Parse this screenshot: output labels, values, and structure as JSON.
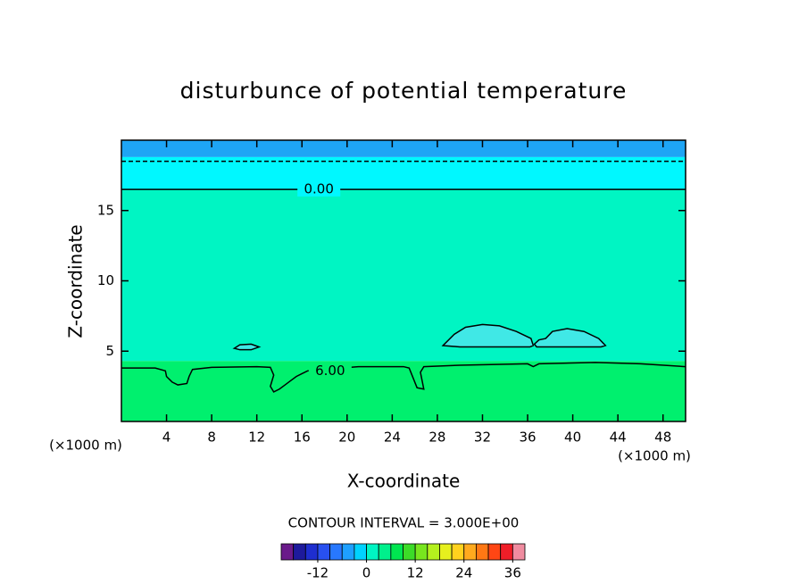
{
  "chart_data": {
    "type": "contour",
    "title": "disturbunce of potential temperature",
    "xlabel": "X-coordinate",
    "ylabel": "Z-coordinate",
    "x_unit": "(×1000 m)",
    "xlim": [
      0,
      50
    ],
    "ylim": [
      0,
      20
    ],
    "xticks": [
      4,
      8,
      12,
      16,
      20,
      24,
      28,
      32,
      36,
      40,
      44,
      48
    ],
    "yticks": [
      5,
      10,
      15
    ],
    "fill_bands": [
      {
        "zlim": [
          18.8,
          20
        ],
        "color": "#1ea5f5"
      },
      {
        "zlim": [
          16.5,
          18.8
        ],
        "color": "#00f8ff"
      },
      {
        "zlim": [
          4.3,
          16.5
        ],
        "color": "#00f5c3"
      },
      {
        "zlim": [
          0,
          4.3
        ],
        "color": "#00f06e"
      }
    ],
    "contours": [
      {
        "level": -3,
        "dashed": true,
        "x": [
          0,
          50
        ],
        "y": [
          18.5,
          18.5
        ]
      },
      {
        "level": 0,
        "label": "0.00",
        "label_x": 17.5,
        "x": [
          0,
          50
        ],
        "y": [
          16.5,
          16.5
        ]
      },
      {
        "level": 6,
        "label": "6.00",
        "label_x": 18.5,
        "x": [
          0,
          3,
          3.9,
          4,
          4.5,
          5,
          5.8,
          6,
          6.3,
          8,
          12,
          13.2,
          13.5,
          13.2,
          13.5,
          14,
          14.5,
          15,
          15.5,
          16,
          16.5,
          21,
          25,
          25.5,
          26.2,
          26.8,
          26.5,
          26.8,
          30,
          36,
          36.5,
          37,
          42,
          46,
          50
        ],
        "y": [
          3.8,
          3.8,
          3.6,
          3.2,
          2.8,
          2.6,
          2.7,
          3.2,
          3.7,
          3.85,
          3.9,
          3.85,
          3.3,
          2.5,
          2.1,
          2.3,
          2.6,
          2.9,
          3.2,
          3.4,
          3.6,
          3.9,
          3.9,
          3.8,
          2.4,
          2.3,
          3.5,
          3.9,
          4.0,
          4.1,
          3.9,
          4.1,
          4.2,
          4.1,
          3.9
        ]
      },
      {
        "level": 0,
        "fill": "#40e8e6",
        "x": [
          10,
          10.5,
          11.5,
          12.2,
          11.5,
          10.5,
          10
        ],
        "y": [
          5.2,
          5.45,
          5.5,
          5.3,
          5.1,
          5.1,
          5.2
        ]
      },
      {
        "level": 0,
        "fill": "#40e8e6",
        "x": [
          28.5,
          29.5,
          30.5,
          32,
          33.5,
          35,
          36.3,
          36.5,
          36.2,
          33,
          30,
          28.5
        ],
        "y": [
          5.4,
          6.2,
          6.7,
          6.9,
          6.8,
          6.4,
          5.9,
          5.4,
          5.3,
          5.3,
          5.3,
          5.4
        ]
      },
      {
        "level": 0,
        "fill": "#40e8e6",
        "x": [
          36.6,
          37,
          37.6,
          38.2,
          39.5,
          41,
          42.3,
          42.9,
          42.5,
          39,
          36.8,
          36.6
        ],
        "y": [
          5.5,
          5.8,
          5.9,
          6.4,
          6.6,
          6.4,
          5.9,
          5.4,
          5.3,
          5.3,
          5.3,
          5.5
        ]
      }
    ],
    "colorbar": {
      "title": "CONTOUR INTERVAL = 3.000E+00",
      "levels": [
        -21,
        -18,
        -15,
        -12,
        -9,
        -6,
        -3,
        0,
        3,
        6,
        9,
        12,
        15,
        18,
        21,
        24,
        27,
        30,
        33,
        36,
        39
      ],
      "colors": [
        "#6a1a8a",
        "#1e1a9c",
        "#1e2ecf",
        "#2850f0",
        "#2878ff",
        "#1ea0ff",
        "#00d2ff",
        "#00f5c3",
        "#00f08c",
        "#00e650",
        "#3cdc28",
        "#78e61e",
        "#b4f01e",
        "#e6f01e",
        "#ffd21e",
        "#ffaa1e",
        "#ff7814",
        "#ff4614",
        "#f01e28",
        "#f08ca0"
      ],
      "ticks": [
        -12,
        0,
        12,
        24,
        36
      ]
    }
  }
}
